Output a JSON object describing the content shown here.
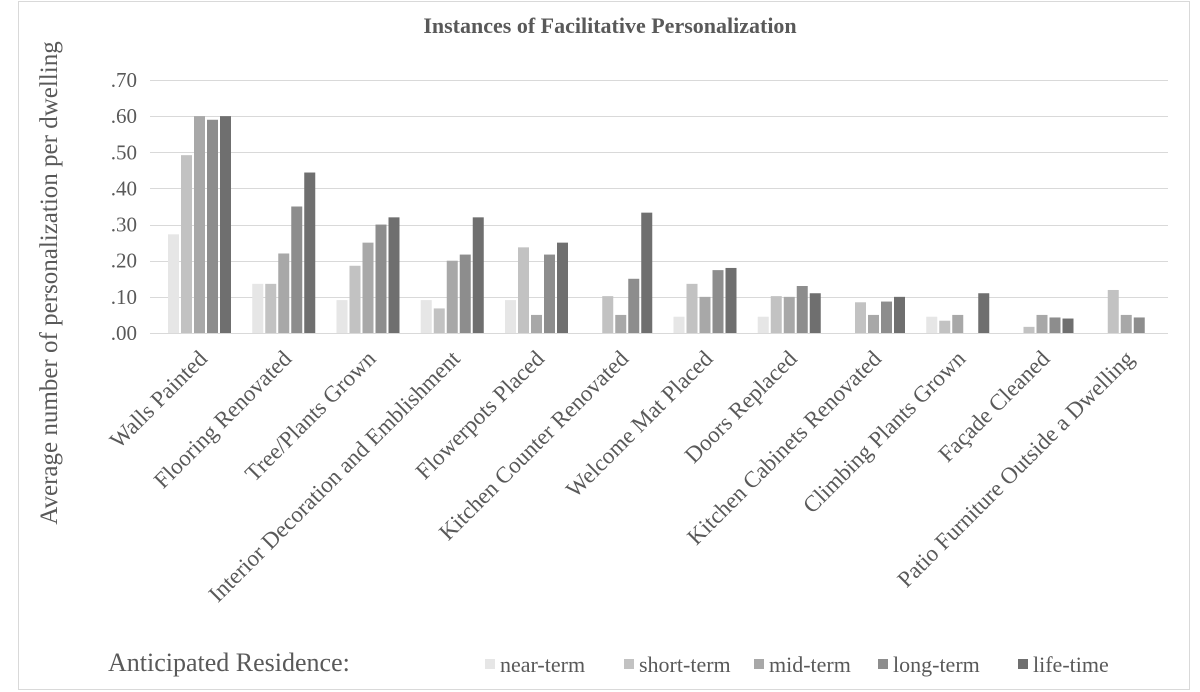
{
  "chart_data": {
    "type": "bar",
    "title": "Instances of Facilitative Personalization",
    "xlabel": "",
    "ylabel": "Average number of personalization per dwelling",
    "ylim": [
      0,
      0.7
    ],
    "yticks": [
      0,
      0.1,
      0.2,
      0.3,
      0.4,
      0.5,
      0.6,
      0.7
    ],
    "ytick_labels": [
      ".00",
      ".10",
      ".20",
      ".30",
      ".40",
      ".50",
      ".60",
      ".70"
    ],
    "grid": true,
    "legend": {
      "title": "Anticipated Residence:",
      "placement": "bottom"
    },
    "categories": [
      "Walls Painted",
      "Flooring Renovated",
      "Tree/Plants Grown",
      "Interior Decoration and Emblishment",
      "Flowerpots Placed",
      "Kitchen Counter Renovated",
      "Welcome Mat Placed",
      "Doors Replaced",
      "Kitchen Cabinets Renovated",
      "Climbing Plants Grown",
      "Façade Cleaned",
      "Patio Furniture Outside a Dwelling"
    ],
    "series": [
      {
        "name": "near-term",
        "color": "#e6e6e6",
        "values": [
          0.273,
          0.136,
          0.091,
          0.091,
          0.091,
          0,
          0.045,
          0.045,
          0,
          0.045,
          0,
          0
        ]
      },
      {
        "name": "short-term",
        "color": "#c2c2c2",
        "values": [
          0.492,
          0.136,
          0.186,
          0.068,
          0.237,
          0.102,
          0.136,
          0.102,
          0.085,
          0.034,
          0.017,
          0.119
        ]
      },
      {
        "name": "mid-term",
        "color": "#a8a8a8",
        "values": [
          0.6,
          0.22,
          0.25,
          0.2,
          0.05,
          0.05,
          0.1,
          0.1,
          0.05,
          0.05,
          0.05,
          0.05
        ]
      },
      {
        "name": "long-term",
        "color": "#8d8d8d",
        "values": [
          0.59,
          0.35,
          0.3,
          0.217,
          0.217,
          0.15,
          0.174,
          0.13,
          0.087,
          0,
          0.043,
          0.043
        ]
      },
      {
        "name": "life-time",
        "color": "#6f6f6f",
        "values": [
          0.6,
          0.444,
          0.32,
          0.32,
          0.25,
          0.333,
          0.18,
          0.11,
          0.1,
          0.11,
          0.04,
          0
        ]
      }
    ]
  }
}
